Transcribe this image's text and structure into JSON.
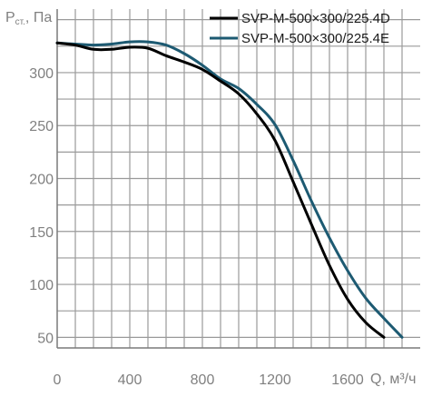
{
  "chart_data": {
    "type": "line",
    "y_axis": {
      "label_main": "P",
      "label_sub": "ст.",
      "label_unit": ", Па",
      "min": 40,
      "max": 360,
      "ticks": [
        50,
        100,
        150,
        200,
        250,
        300
      ]
    },
    "x_axis": {
      "label": "Q, м³/ч",
      "min": 0,
      "max": 2000,
      "ticks": [
        0,
        400,
        800,
        1200,
        1600
      ]
    },
    "grid": true,
    "legend_position": "top-right",
    "series": [
      {
        "name": "SVP-M-500×300/225.4D",
        "color": "#000000",
        "points": [
          [
            0,
            328
          ],
          [
            100,
            326
          ],
          [
            200,
            322
          ],
          [
            300,
            322
          ],
          [
            400,
            324
          ],
          [
            500,
            323
          ],
          [
            600,
            316
          ],
          [
            700,
            310
          ],
          [
            800,
            303
          ],
          [
            900,
            292
          ],
          [
            1000,
            280
          ],
          [
            1100,
            261
          ],
          [
            1200,
            236
          ],
          [
            1300,
            197
          ],
          [
            1400,
            157
          ],
          [
            1500,
            118
          ],
          [
            1600,
            86
          ],
          [
            1700,
            64
          ],
          [
            1800,
            50
          ]
        ]
      },
      {
        "name": "SVP-M-500×300/225.4E",
        "color": "#1d5a72",
        "points": [
          [
            0,
            328
          ],
          [
            100,
            327
          ],
          [
            200,
            326
          ],
          [
            300,
            327
          ],
          [
            400,
            329
          ],
          [
            500,
            329
          ],
          [
            600,
            326
          ],
          [
            700,
            318
          ],
          [
            800,
            307
          ],
          [
            900,
            294
          ],
          [
            1000,
            285
          ],
          [
            1100,
            270
          ],
          [
            1200,
            251
          ],
          [
            1300,
            217
          ],
          [
            1400,
            179
          ],
          [
            1500,
            144
          ],
          [
            1600,
            113
          ],
          [
            1700,
            87
          ],
          [
            1800,
            68
          ],
          [
            1900,
            50
          ]
        ]
      }
    ]
  }
}
